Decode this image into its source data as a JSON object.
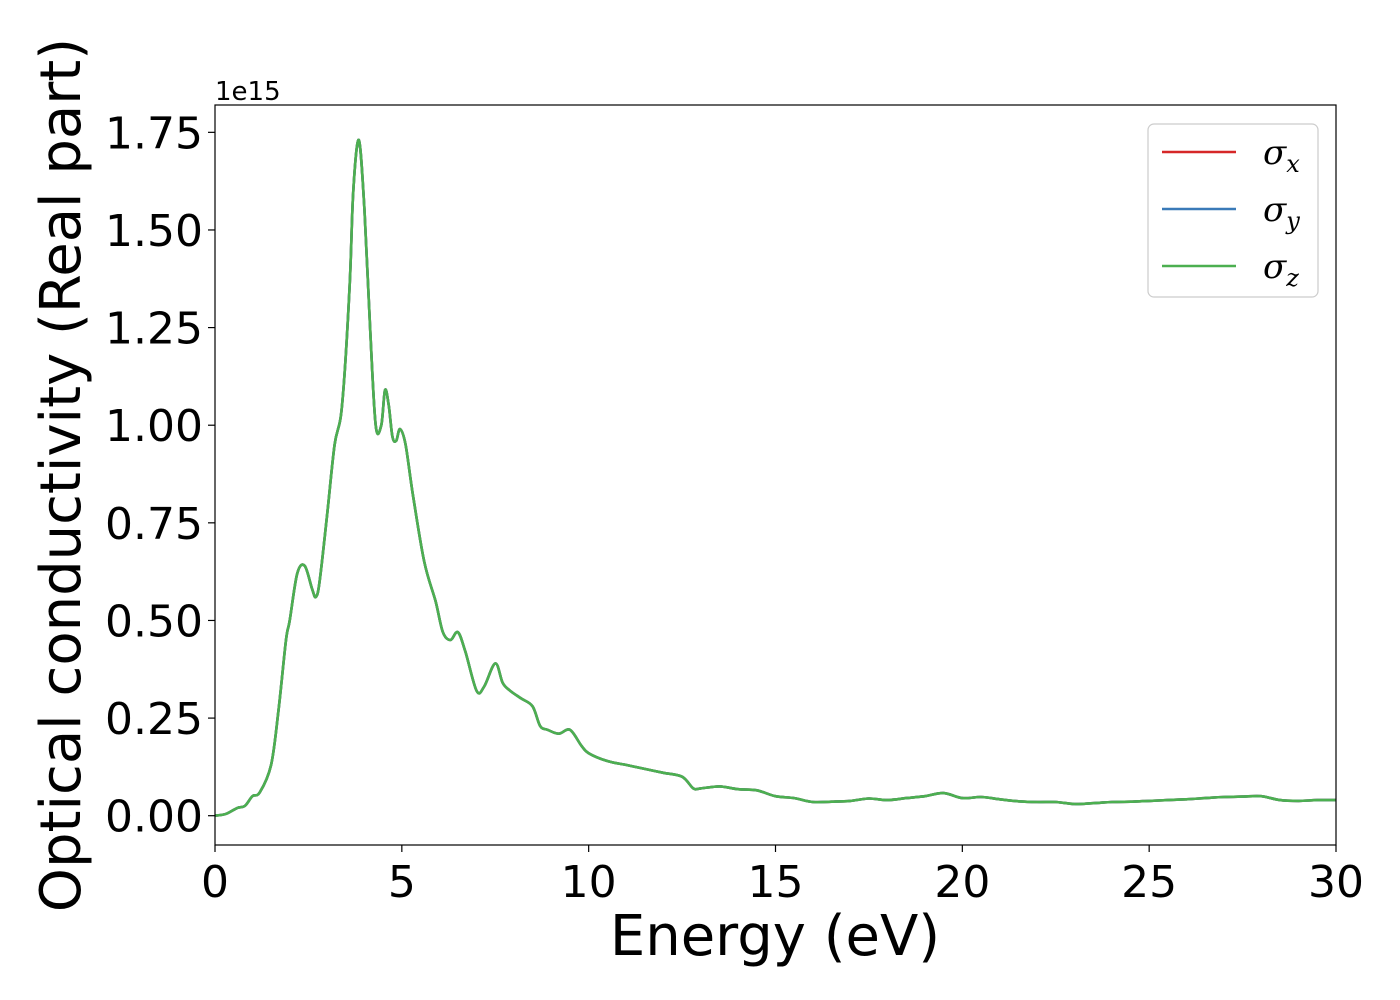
{
  "chart_data": {
    "type": "line",
    "xlabel": "Energy (eV)",
    "ylabel": "Optical conductivity (Real part)",
    "y_offset_label": "1e15",
    "xlim": [
      0,
      30
    ],
    "ylim": [
      -0.075,
      1.82
    ],
    "x_ticks": [
      0,
      5,
      10,
      15,
      20,
      25,
      30
    ],
    "x_tick_labels": [
      "0",
      "5",
      "10",
      "15",
      "20",
      "25",
      "30"
    ],
    "y_ticks": [
      0,
      0.25,
      0.5,
      0.75,
      1.0,
      1.25,
      1.5,
      1.75
    ],
    "y_tick_labels": [
      "0.00",
      "0.25",
      "0.50",
      "0.75",
      "1.00",
      "1.25",
      "1.50",
      "1.75"
    ],
    "grid": false,
    "legend_position": "top-right",
    "series": [
      {
        "name": "σ",
        "subscript": "x",
        "color": "#d62728"
      },
      {
        "name": "σ",
        "subscript": "y",
        "color": "#3a7ab8"
      },
      {
        "name": "σ",
        "subscript": "z",
        "color": "#4caf50"
      }
    ],
    "x": [
      0,
      0.3,
      0.6,
      0.8,
      1.0,
      1.2,
      1.5,
      1.7,
      1.9,
      2.0,
      2.2,
      2.4,
      2.6,
      2.7,
      2.8,
      3.0,
      3.2,
      3.4,
      3.6,
      3.7,
      3.85,
      4.0,
      4.15,
      4.3,
      4.45,
      4.55,
      4.65,
      4.75,
      4.85,
      4.95,
      5.1,
      5.3,
      5.6,
      5.9,
      6.1,
      6.3,
      6.5,
      6.7,
      7.0,
      7.2,
      7.5,
      7.7,
      7.9,
      8.2,
      8.5,
      8.7,
      8.9,
      9.2,
      9.5,
      9.8,
      10.0,
      10.5,
      11.0,
      11.5,
      12.0,
      12.5,
      12.8,
      13.0,
      13.5,
      14.0,
      14.5,
      15.0,
      15.5,
      16.0,
      16.5,
      17.0,
      17.5,
      18.0,
      18.5,
      19.0,
      19.5,
      20.0,
      20.5,
      21.0,
      21.5,
      22.0,
      22.5,
      23.0,
      23.5,
      24.0,
      24.5,
      25.0,
      25.5,
      26.0,
      26.5,
      27.0,
      27.5,
      28.0,
      28.5,
      29.0,
      29.5,
      30.0
    ],
    "values": [
      0,
      0.005,
      0.02,
      0.025,
      0.05,
      0.06,
      0.13,
      0.27,
      0.45,
      0.5,
      0.62,
      0.64,
      0.58,
      0.56,
      0.6,
      0.77,
      0.95,
      1.05,
      1.35,
      1.6,
      1.73,
      1.55,
      1.25,
      1.0,
      1.0,
      1.09,
      1.05,
      0.97,
      0.96,
      0.99,
      0.95,
      0.82,
      0.65,
      0.55,
      0.47,
      0.45,
      0.47,
      0.42,
      0.32,
      0.33,
      0.39,
      0.34,
      0.32,
      0.3,
      0.28,
      0.23,
      0.22,
      0.21,
      0.22,
      0.18,
      0.16,
      0.14,
      0.13,
      0.12,
      0.11,
      0.1,
      0.07,
      0.07,
      0.075,
      0.068,
      0.065,
      0.05,
      0.045,
      0.035,
      0.036,
      0.038,
      0.044,
      0.04,
      0.045,
      0.05,
      0.058,
      0.045,
      0.048,
      0.042,
      0.037,
      0.035,
      0.035,
      0.03,
      0.032,
      0.035,
      0.036,
      0.038,
      0.04,
      0.042,
      0.045,
      0.048,
      0.049,
      0.05,
      0.04,
      0.038,
      0.04,
      0.04
    ]
  }
}
